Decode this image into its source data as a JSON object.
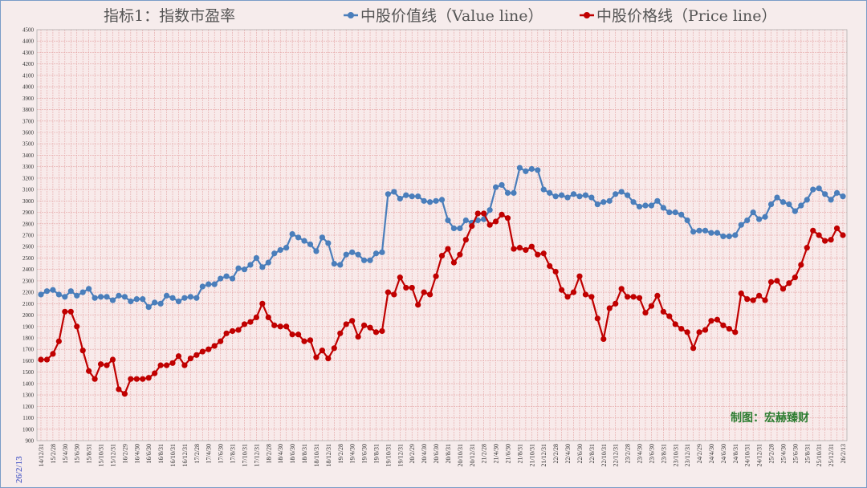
{
  "chart_data": {
    "type": "line",
    "title": "指标1：指数市盈率",
    "ylim": [
      900,
      4500
    ],
    "ytick_step": 100,
    "grid": true,
    "legend_position": "top-right",
    "date_label": "26/2/13",
    "credit": "制图：宏赫臻财",
    "categories": [
      "14/12/31",
      "15/1/31",
      "15/2/28",
      "15/3/31",
      "15/4/30",
      "15/5/31",
      "15/6/30",
      "15/7/31",
      "15/8/31",
      "15/9/30",
      "15/10/31",
      "15/11/30",
      "15/12/31",
      "16/1/31",
      "16/2/29",
      "16/3/31",
      "16/4/30",
      "16/5/31",
      "16/6/30",
      "16/7/31",
      "16/8/31",
      "16/9/30",
      "16/10/31",
      "16/11/30",
      "16/12/31",
      "17/1/31",
      "17/2/28",
      "17/3/31",
      "17/4/30",
      "17/5/31",
      "17/6/30",
      "17/7/31",
      "17/8/31",
      "17/9/30",
      "17/10/31",
      "17/11/30",
      "17/12/31",
      "18/1/31",
      "18/2/28",
      "18/3/31",
      "18/4/30",
      "18/5/31",
      "18/6/30",
      "18/7/31",
      "18/8/31",
      "18/9/30",
      "18/10/31",
      "18/11/30",
      "18/12/31",
      "19/1/31",
      "19/2/28",
      "19/3/31",
      "19/4/30",
      "19/5/31",
      "19/6/30",
      "19/7/31",
      "19/8/31",
      "19/9/30",
      "19/10/31",
      "19/11/30",
      "19/12/31",
      "20/1/31",
      "20/2/29",
      "20/3/31",
      "20/4/30",
      "20/5/31",
      "20/6/30",
      "20/7/31",
      "20/8/31",
      "20/9/30",
      "20/10/31",
      "20/11/30",
      "20/12/31",
      "21/1/31",
      "21/2/28",
      "21/3/31",
      "21/4/30",
      "21/5/31",
      "21/6/30",
      "21/7/31",
      "21/8/31",
      "21/9/30",
      "21/10/31",
      "21/11/30",
      "21/12/31",
      "22/1/31",
      "22/2/28",
      "22/3/31",
      "22/4/30",
      "22/5/31",
      "22/6/30",
      "22/7/31",
      "22/8/31",
      "22/9/30",
      "22/10/31",
      "22/11/30",
      "22/12/31",
      "23/1/31",
      "23/2/28",
      "23/3/31",
      "23/4/30",
      "23/5/31",
      "23/6/30",
      "23/7/31",
      "23/8/31",
      "23/9/30",
      "23/10/31",
      "23/11/30",
      "23/12/31",
      "24/1/31",
      "24/2/29",
      "24/3/31",
      "24/4/30",
      "24/5/31",
      "24/6/30",
      "24/7/31",
      "24/8/31",
      "24/9/30",
      "24/10/31",
      "24/11/30",
      "24/12/31",
      "25/1/31",
      "25/2/28",
      "25/3/31",
      "25/4/30",
      "25/5/31",
      "25/6/30",
      "25/7/31",
      "25/8/31",
      "25/9/30",
      "25/10/31",
      "25/11/30",
      "25/12/31",
      "26/1/31",
      "26/2/13"
    ],
    "series": [
      {
        "name": "中股价值线（Value line）",
        "color": "#4a7ebb",
        "values": [
          2180,
          2210,
          2220,
          2180,
          2160,
          2210,
          2170,
          2200,
          2230,
          2150,
          2160,
          2160,
          2130,
          2170,
          2160,
          2120,
          2140,
          2140,
          2070,
          2110,
          2100,
          2170,
          2150,
          2120,
          2150,
          2160,
          2150,
          2250,
          2270,
          2270,
          2320,
          2340,
          2320,
          2410,
          2400,
          2440,
          2500,
          2420,
          2460,
          2540,
          2570,
          2590,
          2710,
          2680,
          2650,
          2620,
          2560,
          2680,
          2630,
          2450,
          2440,
          2530,
          2550,
          2530,
          2480,
          2480,
          2540,
          2550,
          3060,
          3080,
          3020,
          3050,
          3040,
          3040,
          3000,
          2990,
          3000,
          3010,
          2830,
          2760,
          2760,
          2830,
          2810,
          2830,
          2840,
          2920,
          3120,
          3140,
          3070,
          3070,
          3290,
          3260,
          3280,
          3270,
          3100,
          3070,
          3040,
          3050,
          3030,
          3060,
          3040,
          3050,
          3030,
          2970,
          2990,
          3000,
          3060,
          3080,
          3050,
          2990,
          2950,
          2960,
          2960,
          3000,
          2940,
          2900,
          2900,
          2880,
          2830,
          2730,
          2740,
          2740,
          2720,
          2720,
          2690,
          2690,
          2700,
          2790,
          2830,
          2900,
          2840,
          2860,
          2970,
          3030,
          2990,
          2970,
          2910,
          2960,
          3010,
          3100,
          3110,
          3060,
          3010,
          3070,
          3040
        ]
      },
      {
        "name": "中股价格线（Price line）",
        "color": "#c00000",
        "values": [
          1610,
          1610,
          1660,
          1770,
          2030,
          2030,
          1900,
          1690,
          1510,
          1440,
          1570,
          1560,
          1610,
          1350,
          1310,
          1440,
          1440,
          1440,
          1450,
          1490,
          1560,
          1560,
          1580,
          1640,
          1560,
          1620,
          1650,
          1680,
          1700,
          1730,
          1770,
          1840,
          1860,
          1870,
          1920,
          1940,
          1980,
          2100,
          1980,
          1910,
          1900,
          1900,
          1830,
          1830,
          1770,
          1780,
          1630,
          1690,
          1620,
          1710,
          1840,
          1920,
          1950,
          1810,
          1910,
          1890,
          1850,
          1860,
          2200,
          2180,
          2330,
          2240,
          2240,
          2090,
          2200,
          2180,
          2340,
          2520,
          2580,
          2460,
          2530,
          2660,
          2780,
          2890,
          2890,
          2790,
          2820,
          2880,
          2850,
          2580,
          2590,
          2570,
          2600,
          2530,
          2540,
          2430,
          2380,
          2220,
          2160,
          2200,
          2340,
          2180,
          2160,
          1970,
          1790,
          2060,
          2100,
          2230,
          2160,
          2160,
          2150,
          2020,
          2080,
          2170,
          2030,
          1990,
          1920,
          1880,
          1850,
          1710,
          1850,
          1870,
          1950,
          1960,
          1910,
          1880,
          1850,
          2190,
          2140,
          2130,
          2170,
          2130,
          2290,
          2300,
          2230,
          2280,
          2330,
          2440,
          2590,
          2740,
          2700,
          2650,
          2660,
          2760,
          2700
        ]
      }
    ]
  }
}
